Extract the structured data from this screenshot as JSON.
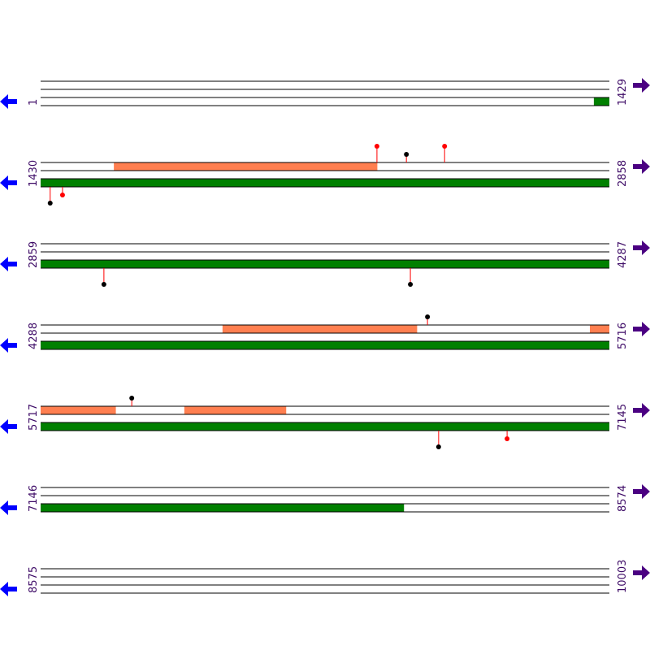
{
  "rows": [
    {
      "start": "1",
      "end": "1429",
      "from": 1,
      "to": 1429,
      "regions": [
        {
          "track": "bottom",
          "start": 1391,
          "end": 1429,
          "color": "#008000"
        }
      ],
      "sites": []
    },
    {
      "start": "1430",
      "end": "2858",
      "from": 1430,
      "to": 2858,
      "regions": [
        {
          "track": "top",
          "start": 1614,
          "end": 2275,
          "color": "#ff7f50"
        },
        {
          "track": "bottom",
          "start": 1430,
          "end": 2858,
          "color": "#008000"
        }
      ],
      "sites": [
        {
          "side": "top",
          "pos": 2275,
          "color": "#ff0000"
        },
        {
          "side": "top",
          "pos": 2349,
          "color": "#000000"
        },
        {
          "side": "top",
          "pos": 2445,
          "color": "#ff0000"
        },
        {
          "side": "bottom",
          "pos": 1454,
          "color": "#000000"
        },
        {
          "side": "bottom",
          "pos": 1485,
          "color": "#ff0000"
        }
      ]
    },
    {
      "start": "2859",
      "end": "4287",
      "from": 2859,
      "to": 4287,
      "regions": [
        {
          "track": "bottom",
          "start": 2859,
          "end": 4287,
          "color": "#008000"
        }
      ],
      "sites": [
        {
          "side": "bottom",
          "pos": 3018,
          "color": "#000000"
        },
        {
          "side": "bottom",
          "pos": 3788,
          "color": "#000000"
        }
      ]
    },
    {
      "start": "4288",
      "end": "5716",
      "from": 4288,
      "to": 5716,
      "regions": [
        {
          "track": "top",
          "start": 4745,
          "end": 5233,
          "color": "#ff7f50"
        },
        {
          "track": "top",
          "start": 5668,
          "end": 5716,
          "color": "#ff7f50"
        },
        {
          "track": "bottom",
          "start": 4288,
          "end": 5716,
          "color": "#008000"
        }
      ],
      "sites": [
        {
          "side": "top",
          "pos": 5260,
          "color": "#000000"
        }
      ]
    },
    {
      "start": "5717",
      "end": "7145",
      "from": 5717,
      "to": 7145,
      "regions": [
        {
          "track": "top",
          "start": 5717,
          "end": 5905,
          "color": "#ff7f50"
        },
        {
          "track": "top",
          "start": 6078,
          "end": 6333,
          "color": "#ff7f50"
        },
        {
          "track": "bottom",
          "start": 5717,
          "end": 7145,
          "color": "#008000"
        }
      ],
      "sites": [
        {
          "side": "top",
          "pos": 5946,
          "color": "#000000"
        },
        {
          "side": "bottom",
          "pos": 6717,
          "color": "#000000"
        },
        {
          "side": "bottom",
          "pos": 6889,
          "color": "#ff0000"
        }
      ]
    },
    {
      "start": "7146",
      "end": "8574",
      "from": 7146,
      "to": 8574,
      "regions": [
        {
          "track": "bottom",
          "start": 7146,
          "end": 8058,
          "color": "#008000"
        }
      ],
      "sites": []
    },
    {
      "start": "8575",
      "end": "10003",
      "from": 8575,
      "to": 10003,
      "regions": [],
      "sites": []
    }
  ]
}
